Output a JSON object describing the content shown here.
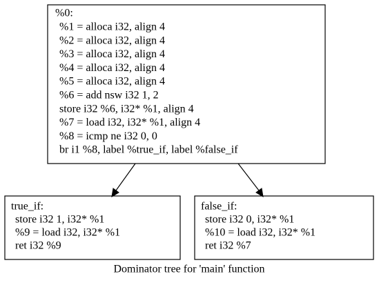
{
  "nodes": [
    {
      "label": "%0:",
      "lines": [
        "%1 = alloca i32, align 4",
        "%2 = alloca i32, align 4",
        "%3 = alloca i32, align 4",
        "%4 = alloca i32, align 4",
        "%5 = alloca i32, align 4",
        "%6 = add nsw i32 1, 2",
        "store i32 %6, i32* %1, align 4",
        "%7 = load i32, i32* %1, align 4",
        "%8 = icmp ne i32 0, 0",
        "br i1 %8, label %true_if, label %false_if"
      ]
    },
    {
      "label": "true_if:",
      "lines": [
        "store i32 1, i32* %1",
        "%9 = load i32, i32* %1",
        "ret i32 %9"
      ]
    },
    {
      "label": "false_if:",
      "lines": [
        "store i32 0, i32* %1",
        "%10 = load i32, i32* %1",
        "ret i32 %7"
      ]
    }
  ],
  "caption": "Dominator tree for 'main' function"
}
